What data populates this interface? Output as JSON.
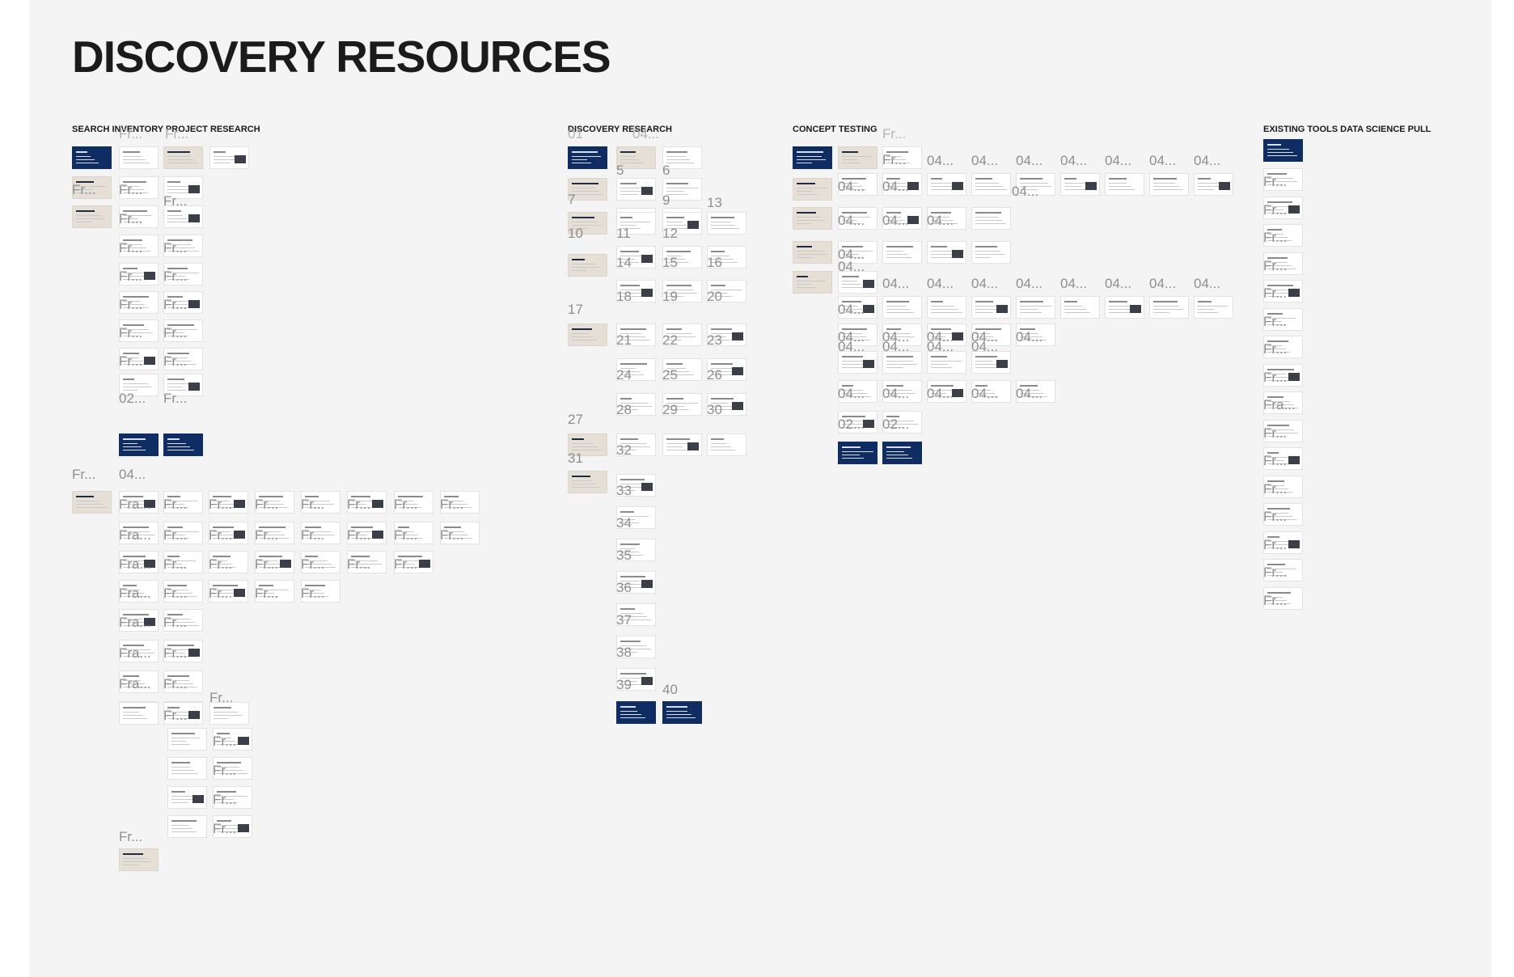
{
  "page": {
    "title": "DISCOVERY RESOURCES"
  },
  "sections": [
    {
      "id": "search-inventory",
      "title": "SEARCH INVENTORY PROJECT RESEARCH"
    },
    {
      "id": "discovery-research",
      "title": "DISCOVERY RESEARCH"
    },
    {
      "id": "concept-testing",
      "title": "CONCEPT TESTING"
    },
    {
      "id": "existing-tools",
      "title": "EXISTING TOOLS DATA SCIENCE PULL"
    }
  ],
  "frame_labels": {
    "fr": "Fr...",
    "fra": "Fra...",
    "code04": "04...",
    "code02": "02...",
    "code01": "01",
    "numbers": [
      "5",
      "6",
      "7",
      "9",
      "10",
      "11",
      "12",
      "13",
      "14",
      "15",
      "16",
      "17",
      "18",
      "19",
      "20",
      "21",
      "22",
      "23",
      "24",
      "25",
      "26",
      "27",
      "28",
      "29",
      "30",
      "31",
      "32",
      "33",
      "34",
      "35",
      "36",
      "37",
      "38",
      "39",
      "40"
    ]
  },
  "colors": {
    "navy": "#0f2d63",
    "beige": "#e6dfd6",
    "canvas": "#f4f4f4",
    "label_gray": "#8e8e8e"
  }
}
